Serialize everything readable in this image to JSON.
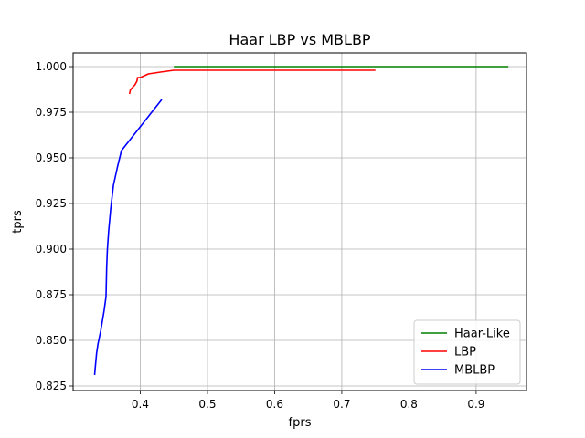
{
  "chart_data": {
    "type": "line",
    "title": "Haar LBP vs MBLBP",
    "xlabel": "fprs",
    "ylabel": "tprs",
    "xlim": [
      0.3,
      0.975
    ],
    "ylim": [
      0.8225,
      1.0075
    ],
    "xticks": [
      0.4,
      0.5,
      0.6,
      0.7,
      0.8,
      0.9
    ],
    "xtick_labels": [
      "0.4",
      "0.5",
      "0.6",
      "0.7",
      "0.8",
      "0.9"
    ],
    "yticks": [
      0.825,
      0.85,
      0.875,
      0.9,
      0.925,
      0.95,
      0.975,
      1.0
    ],
    "ytick_labels": [
      "0.825",
      "0.850",
      "0.875",
      "0.900",
      "0.925",
      "0.950",
      "0.975",
      "1.000"
    ],
    "grid": true,
    "legend_position": "lower right",
    "series": [
      {
        "name": "Haar-Like",
        "color": "#008000",
        "x": [
          0.45,
          0.948
        ],
        "y": [
          1.0,
          1.0
        ]
      },
      {
        "name": "LBP",
        "color": "#ff0000",
        "x": [
          0.384,
          0.385,
          0.387,
          0.392,
          0.395,
          0.396,
          0.4,
          0.412,
          0.43,
          0.45,
          0.6,
          0.75
        ],
        "y": [
          0.985,
          0.987,
          0.988,
          0.99,
          0.992,
          0.994,
          0.994,
          0.996,
          0.997,
          0.998,
          0.998,
          0.998
        ]
      },
      {
        "name": "MBLBP",
        "color": "#0000ff",
        "x": [
          0.332,
          0.333,
          0.335,
          0.337,
          0.341,
          0.346,
          0.349,
          0.35,
          0.351,
          0.353,
          0.356,
          0.36,
          0.366,
          0.372,
          0.432
        ],
        "y": [
          0.831,
          0.835,
          0.843,
          0.848,
          0.855,
          0.866,
          0.874,
          0.89,
          0.9,
          0.91,
          0.922,
          0.935,
          0.945,
          0.954,
          0.982
        ]
      }
    ]
  }
}
